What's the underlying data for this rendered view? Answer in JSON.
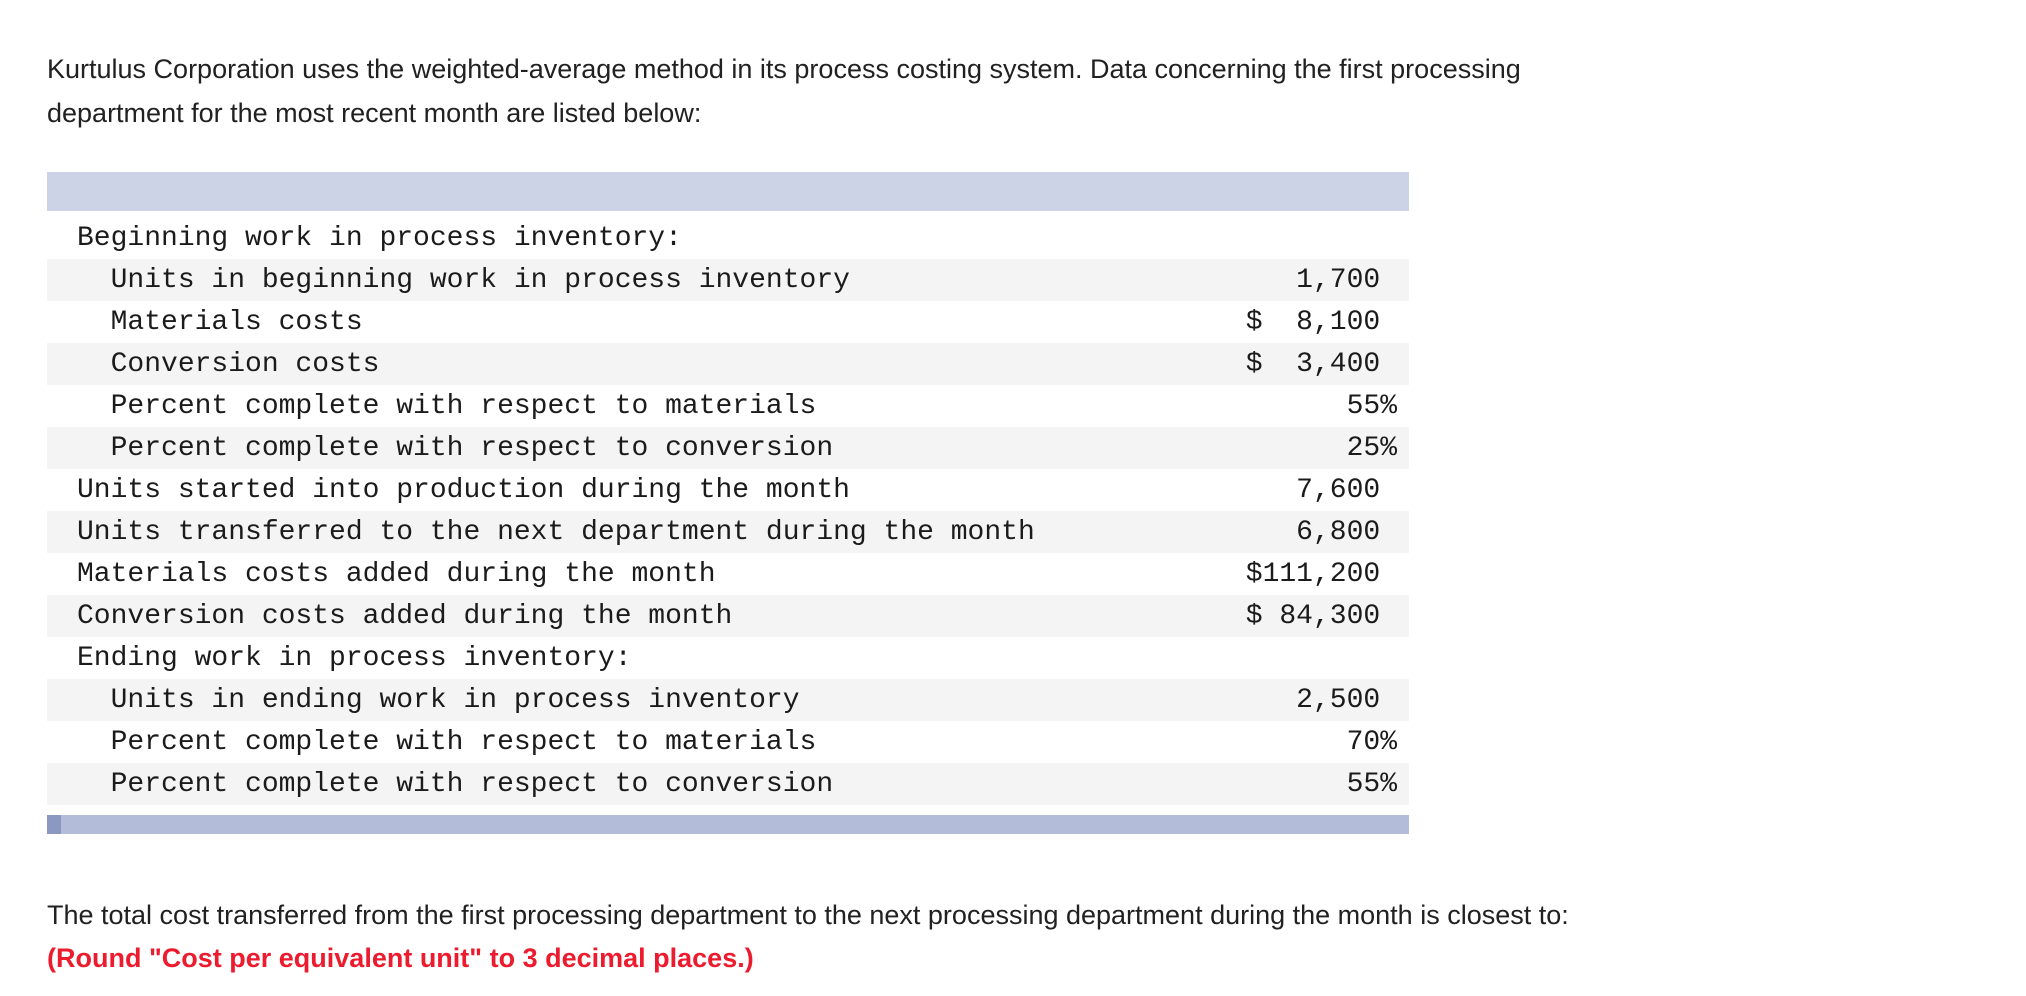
{
  "intro": {
    "line1": "Kurtulus Corporation uses the weighted-average method in its process costing system. Data concerning the first processing",
    "line2": "department for the most recent month are listed below:"
  },
  "table": {
    "rows": [
      {
        "label": "Beginning work in process inventory:",
        "value": ""
      },
      {
        "label": "  Units in beginning work in process inventory",
        "value": "   1,700 "
      },
      {
        "label": "  Materials costs",
        "value": "$  8,100 "
      },
      {
        "label": "  Conversion costs",
        "value": "$  3,400 "
      },
      {
        "label": "  Percent complete with respect to materials",
        "value": "      55%"
      },
      {
        "label": "  Percent complete with respect to conversion",
        "value": "      25%"
      },
      {
        "label": "Units started into production during the month",
        "value": "   7,600 "
      },
      {
        "label": "Units transferred to the next department during the month",
        "value": "   6,800 "
      },
      {
        "label": "Materials costs added during the month",
        "value": "$111,200 "
      },
      {
        "label": "Conversion costs added during the month",
        "value": "$ 84,300 "
      },
      {
        "label": "Ending work in process inventory:",
        "value": ""
      },
      {
        "label": "  Units in ending work in process inventory",
        "value": "   2,500 "
      },
      {
        "label": "  Percent complete with respect to materials",
        "value": "      70%"
      },
      {
        "label": "  Percent complete with respect to conversion",
        "value": "      55%"
      }
    ]
  },
  "question": {
    "text": "The total cost transferred from the first processing department to the next processing department during the month is closest to:",
    "note": "(Round \"Cost per equivalent unit\" to 3 decimal places.)"
  },
  "colors": {
    "header-bar": "#cdd3e6",
    "stripe": "#f4f4f4",
    "scroll-track": "#b3bcd8",
    "scroll-thumb": "#8b98c2",
    "note-red": "#ec1b2e",
    "text": "#212121"
  }
}
